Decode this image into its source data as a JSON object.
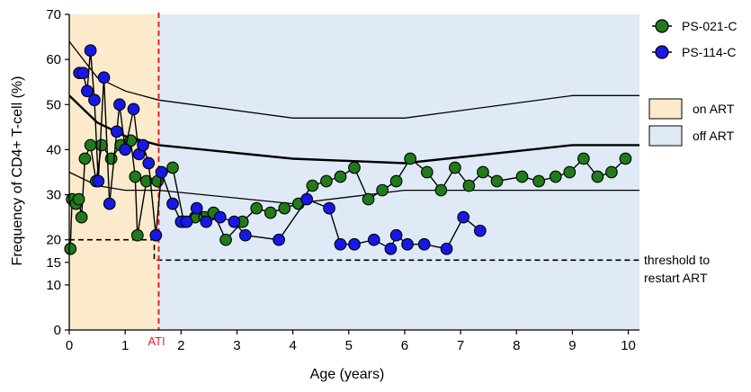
{
  "chart_data": {
    "type": "scatter",
    "xlabel": "Age (years)",
    "ylabel": "Frequency of CD4+ T-cell (%)",
    "xlim": [
      0,
      10.2
    ],
    "ylim": [
      0,
      70
    ],
    "xticks": [
      0,
      1,
      2,
      3,
      4,
      5,
      6,
      7,
      8,
      9,
      10
    ],
    "yticks": [
      0,
      10,
      15,
      20,
      30,
      40,
      50,
      60,
      70
    ],
    "grid": false,
    "legend_position": "top-right",
    "colors": {
      "on_art_fill": "#fbeacb",
      "off_art_fill": "#dfeaf6",
      "ati_line": "#e8202a",
      "ps021": "#217a1b",
      "ps114": "#1818e6"
    },
    "ati": {
      "label": "ATI",
      "x": 1.6
    },
    "regions": [
      {
        "name": "on ART",
        "x": [
          0,
          1.6
        ]
      },
      {
        "name": "off ART",
        "x": [
          1.6,
          10.2
        ]
      }
    ],
    "threshold": {
      "label_line1": "threshold to",
      "label_line2": "restart ART",
      "points": [
        [
          0,
          20
        ],
        [
          1.52,
          20
        ],
        [
          1.52,
          15.5
        ],
        [
          10.2,
          15.5
        ]
      ]
    },
    "reference_curves": [
      {
        "weight": "thin",
        "points": [
          [
            0,
            64
          ],
          [
            0.5,
            56
          ],
          [
            1.0,
            53
          ],
          [
            1.6,
            51
          ],
          [
            4.0,
            47
          ],
          [
            6.0,
            47
          ],
          [
            9.0,
            52
          ],
          [
            10.2,
            52
          ]
        ]
      },
      {
        "weight": "thick",
        "points": [
          [
            0,
            52
          ],
          [
            0.5,
            46
          ],
          [
            1.0,
            43
          ],
          [
            1.6,
            41
          ],
          [
            4.0,
            38
          ],
          [
            6.0,
            37
          ],
          [
            9.0,
            41
          ],
          [
            10.2,
            41
          ]
        ]
      },
      {
        "weight": "thin",
        "points": [
          [
            0,
            35
          ],
          [
            0.5,
            32
          ],
          [
            1.0,
            31
          ],
          [
            1.6,
            31
          ],
          [
            4.0,
            28
          ],
          [
            6.0,
            31
          ],
          [
            9.0,
            31
          ],
          [
            10.2,
            31
          ]
        ]
      }
    ],
    "series": [
      {
        "name": "PS-021-C",
        "points": [
          [
            0.02,
            18
          ],
          [
            0.05,
            29
          ],
          [
            0.12,
            28
          ],
          [
            0.17,
            29
          ],
          [
            0.22,
            25
          ],
          [
            0.28,
            38
          ],
          [
            0.38,
            41
          ],
          [
            0.48,
            33
          ],
          [
            0.58,
            41
          ],
          [
            0.75,
            38
          ],
          [
            0.92,
            41
          ],
          [
            1.1,
            42
          ],
          [
            1.18,
            34
          ],
          [
            1.22,
            21
          ],
          [
            1.38,
            33
          ],
          [
            1.58,
            33
          ],
          [
            1.85,
            36
          ],
          [
            2.05,
            24
          ],
          [
            2.25,
            25
          ],
          [
            2.42,
            25
          ],
          [
            2.58,
            26
          ],
          [
            2.8,
            20
          ],
          [
            3.1,
            24
          ],
          [
            3.35,
            27
          ],
          [
            3.6,
            26
          ],
          [
            3.85,
            27
          ],
          [
            4.1,
            28
          ],
          [
            4.35,
            32
          ],
          [
            4.6,
            33
          ],
          [
            4.85,
            34
          ],
          [
            5.1,
            36
          ],
          [
            5.35,
            29
          ],
          [
            5.6,
            31
          ],
          [
            5.85,
            33
          ],
          [
            6.1,
            38
          ],
          [
            6.4,
            35
          ],
          [
            6.65,
            31
          ],
          [
            6.9,
            36
          ],
          [
            7.15,
            32
          ],
          [
            7.4,
            35
          ],
          [
            7.65,
            33
          ],
          [
            8.1,
            34
          ],
          [
            8.4,
            33
          ],
          [
            8.7,
            34
          ],
          [
            8.95,
            35
          ],
          [
            9.2,
            38
          ],
          [
            9.45,
            34
          ],
          [
            9.7,
            35
          ],
          [
            9.95,
            38
          ]
        ]
      },
      {
        "name": "PS-114-C",
        "points": [
          [
            0.18,
            57
          ],
          [
            0.25,
            57
          ],
          [
            0.32,
            53
          ],
          [
            0.38,
            62
          ],
          [
            0.45,
            51
          ],
          [
            0.52,
            33
          ],
          [
            0.62,
            56
          ],
          [
            0.72,
            28
          ],
          [
            0.85,
            44
          ],
          [
            0.9,
            50
          ],
          [
            1.0,
            40
          ],
          [
            1.15,
            49
          ],
          [
            1.25,
            39
          ],
          [
            1.32,
            41
          ],
          [
            1.42,
            37
          ],
          [
            1.55,
            21
          ],
          [
            1.65,
            35
          ],
          [
            1.85,
            28
          ],
          [
            2.0,
            24
          ],
          [
            2.1,
            24
          ],
          [
            2.28,
            27
          ],
          [
            2.45,
            24
          ],
          [
            2.7,
            25
          ],
          [
            2.95,
            24
          ],
          [
            3.15,
            21
          ],
          [
            3.75,
            20
          ],
          [
            4.25,
            29
          ],
          [
            4.65,
            27
          ],
          [
            4.85,
            19
          ],
          [
            5.1,
            19
          ],
          [
            5.45,
            20
          ],
          [
            5.75,
            18
          ],
          [
            5.85,
            21
          ],
          [
            6.05,
            19
          ],
          [
            6.35,
            19
          ],
          [
            6.75,
            18
          ],
          [
            7.05,
            25
          ],
          [
            7.35,
            22
          ]
        ]
      }
    ]
  }
}
